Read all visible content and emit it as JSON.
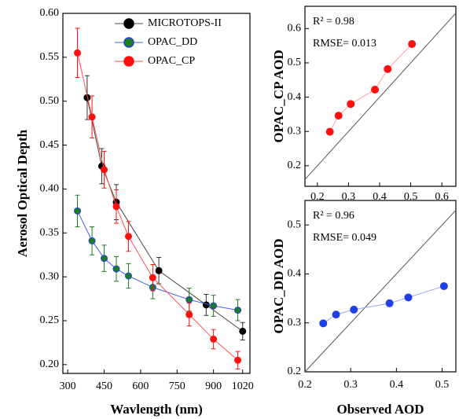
{
  "chart_data": [
    {
      "type": "line",
      "xlabel": "Wavlength (nm)",
      "ylabel": "Aerosol Optical Depth",
      "xlim": [
        280,
        1050
      ],
      "xticks": [
        300,
        450,
        600,
        750,
        900,
        1020
      ],
      "ylim": [
        0.19,
        0.6
      ],
      "yticks": [
        {
          "value": 0.2,
          "label": "0.20"
        },
        {
          "value": 0.25,
          "label": "0.25"
        },
        {
          "value": 0.3,
          "label": "0.30"
        },
        {
          "value": 0.35,
          "label": "0.35"
        },
        {
          "value": 0.4,
          "label": "0.40"
        },
        {
          "value": 0.45,
          "label": "0.45"
        },
        {
          "value": 0.5,
          "label": "0.50"
        },
        {
          "value": 0.55,
          "label": "0.55"
        },
        {
          "value": 0.6,
          "label": "0.60"
        }
      ],
      "legend": "upper right",
      "series": [
        {
          "name": "MICROTOPS-II",
          "color": "#000000",
          "edge": "#000000",
          "line_color": "#444444",
          "x": [
            380,
            440,
            500,
            675,
            870,
            1020
          ],
          "values": [
            0.504,
            0.426,
            0.385,
            0.307,
            0.268,
            0.238
          ],
          "errors": [
            0.025,
            0.02,
            0.02,
            0.015,
            0.012,
            0.01
          ]
        },
        {
          "name": "OPAC_DD",
          "color": "#1e7b1e",
          "edge": "#2040e0",
          "line_color": "#4060e0",
          "x": [
            340,
            400,
            450,
            500,
            550,
            650,
            800,
            900,
            1000
          ],
          "values": [
            0.375,
            0.341,
            0.321,
            0.309,
            0.301,
            0.288,
            0.274,
            0.267,
            0.262
          ],
          "errors": [
            0.018,
            0.016,
            0.015,
            0.014,
            0.014,
            0.013,
            0.013,
            0.012,
            0.012
          ]
        },
        {
          "name": "OPAC_CP",
          "color": "#ff1010",
          "edge": "#ff1010",
          "line_color": "#ff5050",
          "x": [
            340,
            400,
            450,
            500,
            550,
            650,
            800,
            900,
            1000
          ],
          "values": [
            0.555,
            0.482,
            0.422,
            0.38,
            0.346,
            0.299,
            0.257,
            0.229,
            0.205
          ],
          "errors": [
            0.028,
            0.024,
            0.021,
            0.019,
            0.017,
            0.015,
            0.013,
            0.011,
            0.01
          ]
        }
      ]
    },
    {
      "type": "scatter",
      "ylabel": "OPAC_CP AOD",
      "identity_line": true,
      "xlim": [
        0.16,
        0.645
      ],
      "xticks": [
        0.2,
        0.3,
        0.4,
        0.5,
        0.6
      ],
      "ylim": [
        0.14,
        0.665
      ],
      "yticks": [
        0.2,
        0.3,
        0.4,
        0.5,
        0.6
      ],
      "annotations": [
        "R² = 0.98",
        "RMSE= 0.013"
      ],
      "series": [
        {
          "color": "#ff1010",
          "line_color": "#ffa0a0",
          "x": [
            0.24,
            0.268,
            0.307,
            0.385,
            0.426,
            0.504
          ],
          "values": [
            0.299,
            0.346,
            0.38,
            0.422,
            0.482,
            0.555
          ]
        }
      ]
    },
    {
      "type": "scatter",
      "ylabel": "OPAC_DD AOD",
      "xlabel": "Observed AOD",
      "identity_line": true,
      "xlim": [
        0.2,
        0.53
      ],
      "xticks": [
        0.2,
        0.3,
        0.4,
        0.5
      ],
      "ylim": [
        0.2,
        0.55
      ],
      "yticks": [
        0.2,
        0.3,
        0.4,
        0.5
      ],
      "annotations": [
        "R² = 0.96",
        "RMSE= 0.049"
      ],
      "series": [
        {
          "color": "#1f3fe8",
          "line_color": "#9aa8f0",
          "x": [
            0.24,
            0.268,
            0.307,
            0.385,
            0.426,
            0.504
          ],
          "values": [
            0.299,
            0.317,
            0.327,
            0.34,
            0.352,
            0.375
          ]
        }
      ]
    }
  ]
}
